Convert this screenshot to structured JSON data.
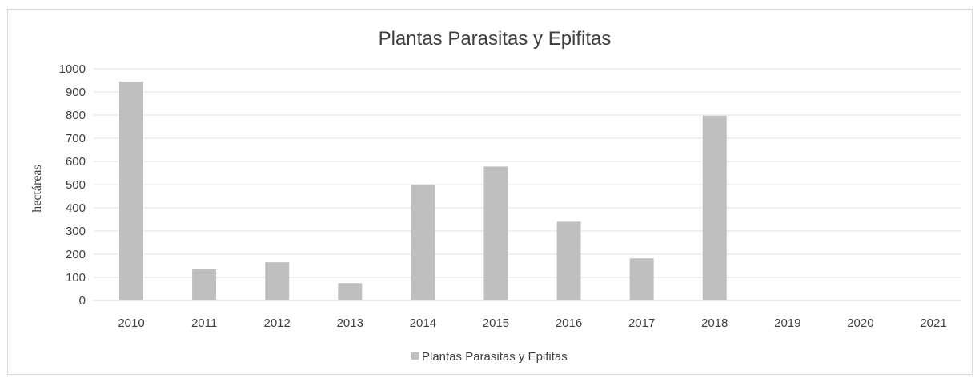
{
  "chart_data": {
    "type": "bar",
    "title": "Plantas Parasitas y Epifitas",
    "xlabel": "",
    "ylabel": "hectáreas",
    "ylim": [
      0,
      1000
    ],
    "yticks": [
      "0",
      "100",
      "200",
      "300",
      "400",
      "500",
      "600",
      "700",
      "800",
      "900",
      "1000"
    ],
    "categories": [
      "2010",
      "2011",
      "2012",
      "2013",
      "2014",
      "2015",
      "2016",
      "2017",
      "2018",
      "2019",
      "2020",
      "2021"
    ],
    "series": [
      {
        "name": "Plantas Parasitas y Epifitas",
        "values": [
          945,
          135,
          165,
          75,
          500,
          578,
          340,
          182,
          797,
          0,
          0,
          0
        ],
        "color": "#bfbfbf"
      }
    ],
    "grid": true,
    "legend": "bottom"
  }
}
